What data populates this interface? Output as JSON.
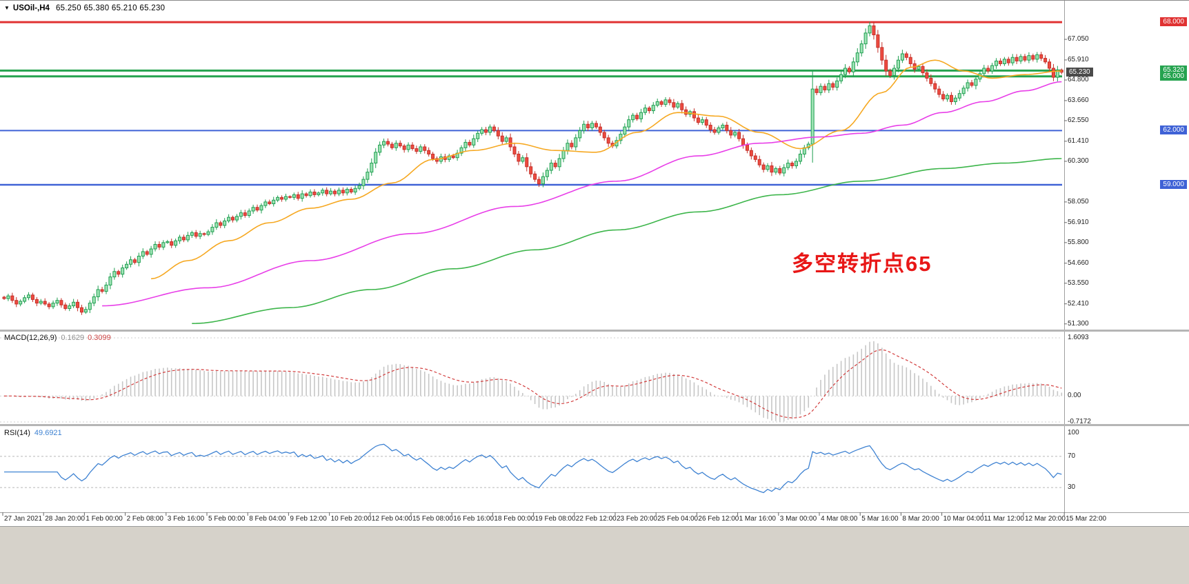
{
  "colors": {
    "background": "#ffffff",
    "up_fill": "#9fe3b5",
    "up_stroke": "#1d9e4f",
    "down_fill": "#ee4b40",
    "down_stroke": "#c42f28",
    "ma_fast": "#f6a821",
    "ma_mid": "#e83ee8",
    "ma_slow": "#3cb54a",
    "macd_hist": "#c6c6c6",
    "macd_signal": "#d23b3b",
    "rsi_line": "#3e82d2",
    "level_red": "#e03232",
    "level_green": "#25a34f",
    "level_blue": "#3f62d6",
    "annotation_red": "#e81717",
    "bottom_strip": "#d6d2ca"
  },
  "header": {
    "expander": "▼",
    "symbol": "USOil-,H4",
    "ohlc": "65.250 65.380 65.210 65.230"
  },
  "annotation": {
    "text": "多空转折点65",
    "color": "#e81717"
  },
  "macd_panel": {
    "title": "MACD(12,26,9)",
    "main_value": "0.1629",
    "signal_value": "0.3099",
    "axis_labels": [
      "1.6093",
      "0.00",
      "-0.7172"
    ]
  },
  "rsi_panel": {
    "title": "RSI(14)",
    "value": "49.6921",
    "axis_labels": [
      100,
      70,
      30
    ],
    "dashed_levels": [
      70,
      30
    ]
  },
  "price_axis": {
    "current_price": {
      "value": "65.230",
      "bg": "#4a4a4a"
    }
  },
  "chart_data": {
    "type": "candlestick",
    "symbol": "USOil-",
    "timeframe": "H4",
    "ohlc_display": {
      "open": 65.25,
      "high": 65.38,
      "low": 65.21,
      "close": 65.23
    },
    "price_range": {
      "min": 51.1,
      "max": 68.35
    },
    "price_axis_labels": [
      67.05,
      65.91,
      64.8,
      63.66,
      62.55,
      61.41,
      60.3,
      58.05,
      56.91,
      55.8,
      54.66,
      53.55,
      52.41,
      51.3
    ],
    "time_labels": [
      "27 Jan 2021",
      "28 Jan 20:00",
      "1 Feb 00:00",
      "2 Feb 08:00",
      "3 Feb 16:00",
      "5 Feb 00:00",
      "8 Feb 04:00",
      "9 Feb 12:00",
      "10 Feb 20:00",
      "12 Feb 04:00",
      "15 Feb 08:00",
      "16 Feb 16:00",
      "18 Feb 00:00",
      "19 Feb 08:00",
      "22 Feb 12:00",
      "23 Feb 20:00",
      "25 Feb 04:00",
      "26 Feb 12:00",
      "1 Mar 16:00",
      "3 Mar 00:00",
      "4 Mar 08:00",
      "5 Mar 16:00",
      "8 Mar 20:00",
      "10 Mar 04:00",
      "11 Mar 12:00",
      "12 Mar 20:00",
      "15 Mar 22:00"
    ],
    "first_open": 52.78,
    "closes": [
      52.7,
      52.85,
      52.6,
      52.4,
      52.55,
      52.75,
      52.9,
      52.65,
      52.45,
      52.55,
      52.4,
      52.25,
      52.45,
      52.6,
      52.35,
      52.15,
      52.3,
      52.5,
      52.2,
      51.95,
      52.1,
      52.45,
      52.8,
      53.2,
      53.1,
      53.45,
      53.9,
      54.2,
      54.05,
      54.4,
      54.6,
      54.85,
      54.7,
      55.05,
      55.3,
      55.15,
      55.45,
      55.7,
      55.55,
      55.8,
      55.85,
      55.65,
      55.9,
      56.1,
      55.95,
      56.2,
      56.35,
      56.15,
      56.3,
      56.25,
      56.4,
      56.65,
      56.9,
      56.75,
      57.0,
      57.2,
      57.05,
      57.25,
      57.45,
      57.3,
      57.55,
      57.75,
      57.6,
      57.85,
      58.05,
      57.95,
      58.15,
      58.3,
      58.2,
      58.35,
      58.3,
      58.45,
      58.25,
      58.5,
      58.4,
      58.6,
      58.45,
      58.55,
      58.7,
      58.5,
      58.65,
      58.5,
      58.7,
      58.55,
      58.75,
      58.6,
      58.8,
      58.95,
      59.3,
      59.7,
      60.2,
      60.8,
      61.2,
      61.4,
      61.25,
      61.05,
      61.3,
      61.15,
      60.95,
      61.2,
      61.0,
      60.85,
      61.1,
      60.9,
      60.7,
      60.45,
      60.3,
      60.55,
      60.4,
      60.6,
      60.5,
      60.75,
      61.05,
      61.35,
      61.2,
      61.55,
      61.85,
      62.05,
      61.9,
      62.2,
      62.0,
      61.7,
      61.4,
      61.6,
      61.1,
      60.7,
      60.3,
      60.5,
      60.0,
      59.6,
      59.3,
      59.05,
      59.45,
      59.8,
      60.2,
      60.0,
      60.45,
      60.9,
      61.3,
      61.1,
      61.6,
      62.0,
      62.35,
      62.15,
      62.4,
      62.2,
      61.9,
      61.6,
      61.3,
      61.15,
      61.45,
      61.8,
      62.2,
      62.6,
      62.85,
      62.65,
      63.0,
      63.25,
      63.1,
      63.4,
      63.6,
      63.45,
      63.7,
      63.55,
      63.3,
      63.5,
      63.15,
      62.9,
      63.05,
      62.7,
      62.45,
      62.6,
      62.3,
      62.05,
      61.9,
      62.15,
      62.3,
      62.0,
      61.75,
      61.9,
      61.55,
      61.2,
      60.9,
      60.6,
      60.4,
      60.1,
      59.85,
      60.05,
      59.7,
      59.9,
      59.65,
      59.95,
      60.2,
      60.05,
      60.3,
      60.7,
      61.05,
      61.25,
      64.3,
      64.1,
      64.45,
      64.25,
      64.6,
      64.4,
      64.75,
      65.1,
      65.45,
      65.25,
      65.8,
      66.3,
      66.8,
      67.4,
      67.8,
      67.3,
      66.6,
      65.9,
      65.3,
      65.05,
      65.45,
      65.9,
      66.25,
      66.05,
      65.7,
      65.4,
      65.55,
      65.2,
      64.9,
      64.6,
      64.3,
      64.0,
      63.75,
      63.95,
      63.6,
      63.8,
      64.05,
      64.35,
      64.65,
      64.5,
      64.85,
      65.15,
      65.45,
      65.3,
      65.6,
      65.85,
      65.7,
      65.95,
      65.75,
      66.05,
      65.85,
      66.1,
      65.9,
      66.15,
      65.95,
      66.2,
      66.0,
      65.8,
      65.45,
      64.95,
      65.35,
      65.23
    ],
    "levels": [
      {
        "price": 68.0,
        "label": "68.000",
        "color": "#e03232",
        "width": 3
      },
      {
        "price": 65.32,
        "label": "65.320",
        "color": "#25a34f",
        "width": 3
      },
      {
        "price": 65.0,
        "label": "65.000",
        "color": "#25a34f",
        "width": 3
      },
      {
        "price": 62.0,
        "label": "62.000",
        "color": "#3f62d6",
        "width": 2
      },
      {
        "price": 59.0,
        "label": "59.000",
        "color": "#3f62d6",
        "width": 2.5
      }
    ],
    "moving_averages": [
      {
        "name": "ma-fast-orange",
        "color": "#f6a821",
        "anchors": [
          [
            36,
            53.8
          ],
          [
            45,
            54.8
          ],
          [
            55,
            55.9
          ],
          [
            65,
            56.9
          ],
          [
            75,
            57.7
          ],
          [
            85,
            58.2
          ],
          [
            95,
            59.1
          ],
          [
            105,
            60.4
          ],
          [
            115,
            60.9
          ],
          [
            125,
            61.3
          ],
          [
            135,
            60.9
          ],
          [
            145,
            60.8
          ],
          [
            155,
            61.9
          ],
          [
            165,
            63.0
          ],
          [
            175,
            62.8
          ],
          [
            185,
            61.9
          ],
          [
            195,
            61.0
          ],
          [
            205,
            62.0
          ],
          [
            215,
            64.1
          ],
          [
            222,
            65.5
          ],
          [
            228,
            65.9
          ],
          [
            235,
            65.3
          ],
          [
            242,
            64.9
          ],
          [
            250,
            65.1
          ],
          [
            259,
            65.3
          ]
        ]
      },
      {
        "name": "ma-mid-magenta",
        "color": "#e83ee8",
        "anchors": [
          [
            24,
            52.3
          ],
          [
            50,
            53.3
          ],
          [
            75,
            54.8
          ],
          [
            100,
            56.3
          ],
          [
            125,
            57.8
          ],
          [
            150,
            59.2
          ],
          [
            170,
            60.6
          ],
          [
            185,
            61.3
          ],
          [
            200,
            61.65
          ],
          [
            210,
            61.85
          ],
          [
            220,
            62.3
          ],
          [
            230,
            63.0
          ],
          [
            240,
            63.6
          ],
          [
            250,
            64.2
          ],
          [
            259,
            64.7
          ]
        ]
      },
      {
        "name": "ma-slow-green",
        "color": "#3cb54a",
        "anchors": [
          [
            46,
            51.32
          ],
          [
            70,
            52.2
          ],
          [
            90,
            53.2
          ],
          [
            110,
            54.35
          ],
          [
            130,
            55.4
          ],
          [
            150,
            56.5
          ],
          [
            170,
            57.5
          ],
          [
            190,
            58.45
          ],
          [
            210,
            59.2
          ],
          [
            230,
            59.9
          ],
          [
            245,
            60.2
          ],
          [
            259,
            60.45
          ]
        ]
      }
    ],
    "indicators": {
      "macd": {
        "fast": 12,
        "slow": 26,
        "signal": 9
      },
      "rsi": {
        "period": 14
      }
    }
  }
}
